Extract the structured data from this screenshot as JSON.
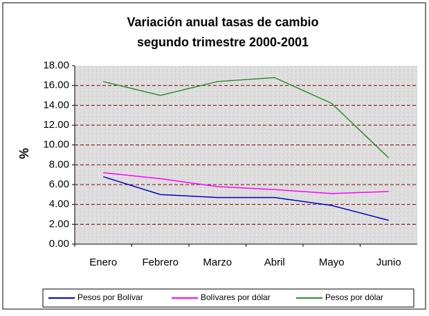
{
  "chart_data": {
    "type": "line",
    "title": [
      "Variación anual tasas de cambio",
      "segundo trimestre 2000-2001"
    ],
    "y_label": "%",
    "categories": [
      "Enero",
      "Febrero",
      "Marzo",
      "Abril",
      "Mayo",
      "Junio"
    ],
    "series": [
      {
        "name": "Pesos por Bolívar",
        "color": "#0000cc",
        "values": [
          6.8,
          5.0,
          4.7,
          4.7,
          3.9,
          2.4
        ]
      },
      {
        "name": "Bolívares por dólar",
        "color": "#ff00ff",
        "values": [
          7.2,
          6.6,
          5.8,
          5.5,
          5.1,
          5.3
        ]
      },
      {
        "name": "Pesos por dólar",
        "color": "#2e8b2e",
        "values": [
          16.4,
          15.0,
          16.4,
          16.8,
          14.2,
          8.7
        ]
      }
    ],
    "ylim": [
      0,
      18
    ],
    "yticks": [
      {
        "value": 0,
        "label": "0.00"
      },
      {
        "value": 2,
        "label": "2.00"
      },
      {
        "value": 4,
        "label": "4.00"
      },
      {
        "value": 6,
        "label": "6.00"
      },
      {
        "value": 8,
        "label": "8.00"
      },
      {
        "value": 10,
        "label": "10.00"
      },
      {
        "value": 12,
        "label": "12.00"
      },
      {
        "value": 14,
        "label": "14.00"
      },
      {
        "value": 16,
        "label": "16.00"
      },
      {
        "value": 18,
        "label": "18.00"
      }
    ],
    "grid": true,
    "grid_color": "#800000",
    "legend": "bottom"
  }
}
